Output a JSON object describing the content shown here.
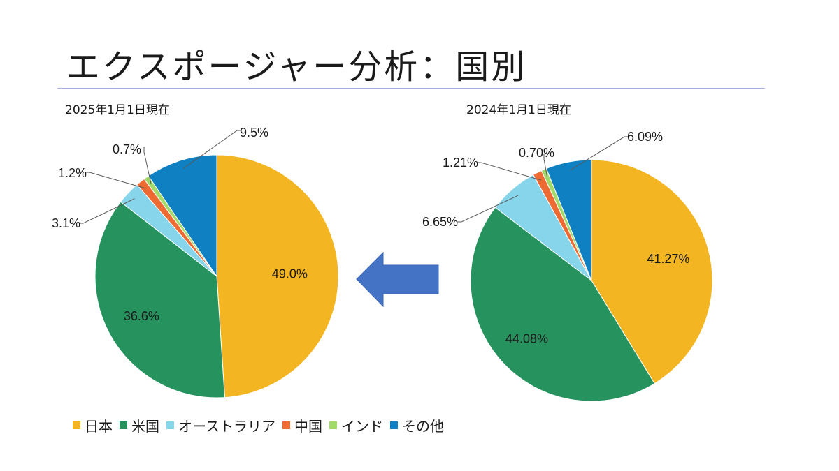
{
  "slide": {
    "title": "エクスポージャー分析：国別"
  },
  "colors": {
    "japan": "#F3B622",
    "usa": "#26925E",
    "australia": "#86D5EA",
    "china": "#ED6B33",
    "india": "#A2DB6A",
    "other": "#0F80C2",
    "arrow": "#4472C4"
  },
  "chart_data": [
    {
      "type": "pie",
      "title": "2025年1月1日現在",
      "categories": [
        "日本",
        "米国",
        "オーストラリア",
        "中国",
        "インド",
        "その他"
      ],
      "values": [
        49.0,
        36.6,
        3.1,
        1.2,
        0.7,
        9.5
      ],
      "labels": [
        "49.0%",
        "36.6%",
        "3.1%",
        "1.2%",
        "0.7%",
        "9.5%"
      ]
    },
    {
      "type": "pie",
      "title": "2024年1月1日現在",
      "categories": [
        "日本",
        "米国",
        "オーストラリア",
        "中国",
        "インド",
        "その他"
      ],
      "values": [
        41.27,
        44.08,
        6.65,
        1.21,
        0.7,
        6.09
      ],
      "labels": [
        "41.27%",
        "44.08%",
        "6.65%",
        "1.21%",
        "0.70%",
        "6.09%"
      ]
    }
  ],
  "legend": [
    {
      "label": "日本",
      "color_key": "japan"
    },
    {
      "label": "米国",
      "color_key": "usa"
    },
    {
      "label": "オーストラリア",
      "color_key": "australia"
    },
    {
      "label": "中国",
      "color_key": "china"
    },
    {
      "label": "インド",
      "color_key": "india"
    },
    {
      "label": "その他",
      "color_key": "other"
    }
  ]
}
